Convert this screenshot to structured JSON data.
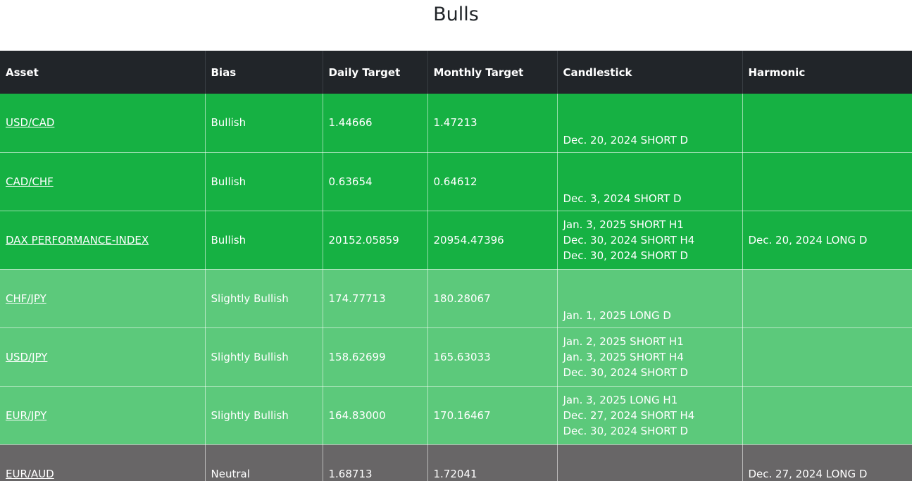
{
  "page": {
    "title": "Bulls"
  },
  "table": {
    "headers": {
      "asset": "Asset",
      "bias": "Bias",
      "daily": "Daily Target",
      "monthly": "Monthly Target",
      "candlestick": "Candlestick",
      "harmonic": "Harmonic"
    },
    "rows": [
      {
        "asset": "USD/CAD",
        "bias": "Bullish",
        "daily": "1.44666",
        "monthly": "1.47213",
        "candlestick": [
          "Dec. 20, 2024 SHORT D"
        ],
        "harmonic": "",
        "row_color": "#16b143"
      },
      {
        "asset": "CAD/CHF",
        "bias": "Bullish",
        "daily": "0.63654",
        "monthly": "0.64612",
        "candlestick": [
          "Dec. 3, 2024 SHORT D"
        ],
        "harmonic": "",
        "row_color": "#16b143"
      },
      {
        "asset": "DAX PERFORMANCE-INDEX",
        "bias": "Bullish",
        "daily": "20152.05859",
        "monthly": "20954.47396",
        "candlestick": [
          "Jan. 3, 2025 SHORT H1",
          "Dec. 30, 2024 SHORT H4",
          "Dec. 30, 2024 SHORT D"
        ],
        "harmonic": "Dec. 20, 2024 LONG D",
        "row_color": "#16b143"
      },
      {
        "asset": "CHF/JPY",
        "bias": "Slightly Bullish",
        "daily": "174.77713",
        "monthly": "180.28067",
        "candlestick": [
          "Jan. 1, 2025 LONG D"
        ],
        "harmonic": "",
        "row_color": "#5cc97b"
      },
      {
        "asset": "USD/JPY",
        "bias": "Slightly Bullish",
        "daily": "158.62699",
        "monthly": "165.63033",
        "candlestick": [
          "Jan. 2, 2025 SHORT H1",
          "Jan. 3, 2025 SHORT H4",
          "Dec. 30, 2024 SHORT D"
        ],
        "harmonic": "",
        "row_color": "#5cc97b"
      },
      {
        "asset": "EUR/JPY",
        "bias": "Slightly Bullish",
        "daily": "164.83000",
        "monthly": "170.16467",
        "candlestick": [
          "Jan. 3, 2025 LONG H1",
          "Dec. 27, 2024 SHORT H4",
          "Dec. 30, 2024 SHORT D"
        ],
        "harmonic": "",
        "row_color": "#5cc97b"
      },
      {
        "asset": "EUR/AUD",
        "bias": "Neutral",
        "daily": "1.68713",
        "monthly": "1.72041",
        "candlestick": [],
        "harmonic": "Dec. 27, 2024 LONG D",
        "row_color": "#686667"
      }
    ]
  },
  "colors": {
    "header_bg": "#212529",
    "bullish": "#16b143",
    "slightly_bullish": "#5cc97b",
    "neutral": "#686667"
  }
}
